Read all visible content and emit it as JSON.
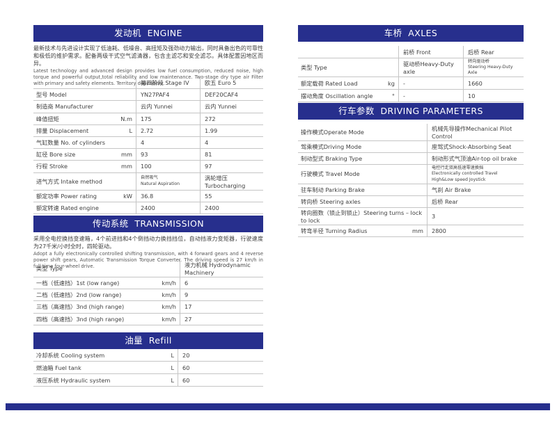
{
  "colors": {
    "accent": "#272f8d",
    "table_border": "#c5c5c5",
    "text": "#3f3f3f"
  },
  "engine": {
    "title": "发动机  ENGINE",
    "desc_zh": "最新技术与先进设计实现了低油耗、低噪音、高扭矩及强劲动力输出，同时具备出色的可靠性和极低的维护需求。配备两级干式空气滤清器，包含主滤芯和安全滤芯。具体配置因地区而异。",
    "desc_en": "Latest technology and advanced design provides low fuel consumption, reduced noise, high torque and powerful output,total reliability and low maintenance. Two-stage dry type air Filter with primary and safety elements. Territory dependent.",
    "table": {
      "header": {
        "label": "",
        "v1": "第四阶段 Stage IV",
        "v2": "欧五 Euro 5"
      },
      "rows": [
        {
          "label": "型号 Model",
          "v1": "YN27PAF4",
          "v2": "DEF20CAF4"
        },
        {
          "label": "制造商 Manufacturer",
          "v1": "云内 Yunnei",
          "v2": "云内 Yunnei"
        },
        {
          "label": "峰值扭矩",
          "unit": "N.m",
          "v1": "175",
          "v2": "272"
        },
        {
          "label": "排量 Displacement",
          "unit": "L",
          "v1": "2.72",
          "v2": "1.99"
        },
        {
          "label": "气缸数量 No. of cylinders",
          "v1": "4",
          "v2": "4"
        },
        {
          "label": "缸径 Bore size",
          "unit": "mm",
          "v1": "93",
          "v2": "81"
        },
        {
          "label": "行程 Stroke",
          "unit": "mm",
          "v1": "100",
          "v2": "97"
        },
        {
          "label": "进气方式 Intake method",
          "v1": [
            "自然吸气",
            "Natural Aspiration"
          ],
          "v2": "涡轮增压 Turbocharging"
        },
        {
          "label": "额定功率 Power rating",
          "unit": "kW",
          "v1": "36.8",
          "v2": "55"
        },
        {
          "label": "额定转速 Rated engine",
          "v1": "2400",
          "v2": "2400"
        }
      ]
    }
  },
  "transmission": {
    "title": "传动系统  TRANSMISSION",
    "desc_zh": "采用全电控换挡变速箱，4个前进挡和4个倒挡动力换挡挡位，自动挡液力变矩器，行驶速度为27千米/小时全时，四轮驱动。",
    "desc_en": "Adopt a fully electronically controlled shifting transmission, with 4 forward gears and 4 reverse power shift gears, Automatic Transmission Torque Converter. The driving speed is 27 km/h in full-time four-wheel drive.",
    "table": {
      "header": {
        "label": "类型 Type",
        "value": "液力机械 Hydrodynamic Machinery"
      },
      "rows": [
        {
          "label": "一档（低速挡）1st (low range)",
          "unit": "km/h",
          "value": "6"
        },
        {
          "label": "二档（低速挡）2nd (low range)",
          "unit": "km/h",
          "value": "9"
        },
        {
          "label": "三档（高速挡）3nd (high range)",
          "unit": "km/h",
          "value": "17"
        },
        {
          "label": "四档（高速挡）3nd (high range)",
          "unit": "km/h",
          "value": "27"
        }
      ]
    }
  },
  "refill": {
    "title": "油量  Refill",
    "table": {
      "rows": [
        {
          "label": "冷却系统 Cooling system",
          "unit": "L",
          "value": "20"
        },
        {
          "label": "燃油箱 Fuel tank",
          "unit": "L",
          "value": "60"
        },
        {
          "label": "液压系统 Hydraulic system",
          "unit": "L",
          "value": "60"
        }
      ]
    }
  },
  "axles": {
    "title": "车桥  AXLES",
    "table": {
      "header": {
        "label": "",
        "v1": "前桥 Front",
        "v2": "后桥 Rear"
      },
      "rows": [
        {
          "label": "类型 Type",
          "v1": "驱动桥Heavy-Duty axle",
          "v2": [
            "转向驱动桥",
            "Steering Heavy-Duty Axle"
          ]
        },
        {
          "label": "额定载荷 Rated Load",
          "unit": "kg",
          "v1": "-",
          "v2": "1660"
        },
        {
          "label": "摆动角度 Oscillation angle",
          "unit": "°",
          "v1": "-",
          "v2": "10"
        }
      ]
    }
  },
  "driving": {
    "title": "行车参数  DRIVING PARAMETERS",
    "table": {
      "rows": [
        {
          "label": "操作模式Operate Mode",
          "value": "机械先导操作Mechanical Pilot Control"
        },
        {
          "label": "驾乘模式Driving Mode",
          "value": "座驾式Shock-Absorbing Seat"
        },
        {
          "label": "制动型式 Braking Type",
          "value": "制动形式气顶油Air-top oil brake"
        },
        {
          "label": "行驶模式 Travel Mode",
          "value": [
            "电控行走双高低速零速换挡",
            "Electronically controlled Travel High&Low speed Joystick"
          ]
        },
        {
          "label": "驻车制动 Parking Brake",
          "value": "气刹 Air Brake"
        },
        {
          "label": "转向桥 Steering axles",
          "value": "后桥 Rear"
        },
        {
          "label": "转向圈数（锁止到锁止）Steering turns – lock to lock",
          "value": "3"
        },
        {
          "label": "转弯半径 Turning Radius",
          "unit": "mm",
          "value": "2800"
        }
      ]
    }
  }
}
